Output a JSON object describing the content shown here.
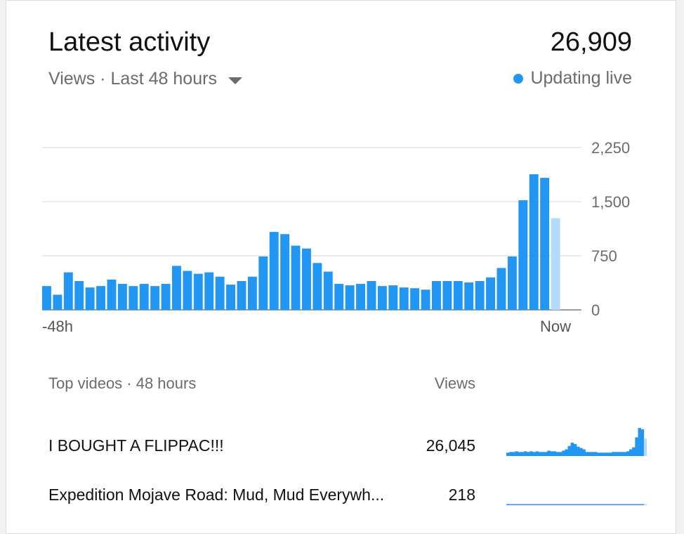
{
  "header": {
    "title": "Latest activity",
    "total_views": "26,909",
    "subtitle": "Views · Last 48 hours",
    "live_status": "Updating live"
  },
  "colors": {
    "bar": "#2196f3",
    "bar_current": "#b3d9fb",
    "live_dot": "#2196f3"
  },
  "chart_data": {
    "type": "bar",
    "xlabel_start": "-48h",
    "xlabel_end": "Now",
    "ylim": [
      0,
      2250
    ],
    "yticks": [
      "2,250",
      "1,500",
      "750",
      "0"
    ],
    "ytick_values": [
      2250,
      1500,
      750,
      0
    ],
    "grid": true,
    "values": [
      330,
      210,
      520,
      400,
      310,
      330,
      420,
      360,
      330,
      360,
      330,
      360,
      610,
      540,
      500,
      520,
      460,
      350,
      400,
      460,
      740,
      1080,
      1050,
      890,
      850,
      650,
      530,
      360,
      340,
      360,
      400,
      330,
      340,
      310,
      300,
      280,
      400,
      400,
      400,
      380,
      400,
      450,
      580,
      740,
      1520,
      1880,
      1830,
      1270
    ],
    "last_bar_partial": true
  },
  "top_videos": {
    "header_label": "Top videos · 48 hours",
    "views_label": "Views",
    "rows": [
      {
        "title": "I BOUGHT A FLIPPAC!!!",
        "views": "26,045",
        "spark": [
          0.05,
          0.06,
          0.06,
          0.07,
          0.06,
          0.06,
          0.07,
          0.06,
          0.07,
          0.06,
          0.07,
          0.06,
          0.06,
          0.06,
          0.08,
          0.07,
          0.07,
          0.06,
          0.06,
          0.08,
          0.1,
          0.15,
          0.2,
          0.18,
          0.14,
          0.12,
          0.1,
          0.06,
          0.06,
          0.06,
          0.06,
          0.05,
          0.05,
          0.05,
          0.05,
          0.05,
          0.06,
          0.06,
          0.06,
          0.06,
          0.06,
          0.07,
          0.1,
          0.13,
          0.28,
          0.42,
          0.4,
          0.26
        ]
      },
      {
        "title": "Expedition Mojave Road: Mud, Mud Everywh...",
        "views": "218",
        "spark": [
          0.01,
          0.01,
          0.01,
          0.01,
          0.01,
          0.01,
          0.01,
          0.01,
          0.01,
          0.01,
          0.01,
          0.01,
          0.01,
          0.01,
          0.01,
          0.01,
          0.01,
          0.01,
          0.01,
          0.01,
          0.01,
          0.01,
          0.01,
          0.01,
          0.01,
          0.01,
          0.01,
          0.01,
          0.01,
          0.01,
          0.01,
          0.01,
          0.01,
          0.01,
          0.01,
          0.01,
          0.01,
          0.01,
          0.01,
          0.01,
          0.01,
          0.01,
          0.01,
          0.01,
          0.01,
          0.01,
          0.01,
          0.01
        ]
      }
    ]
  }
}
